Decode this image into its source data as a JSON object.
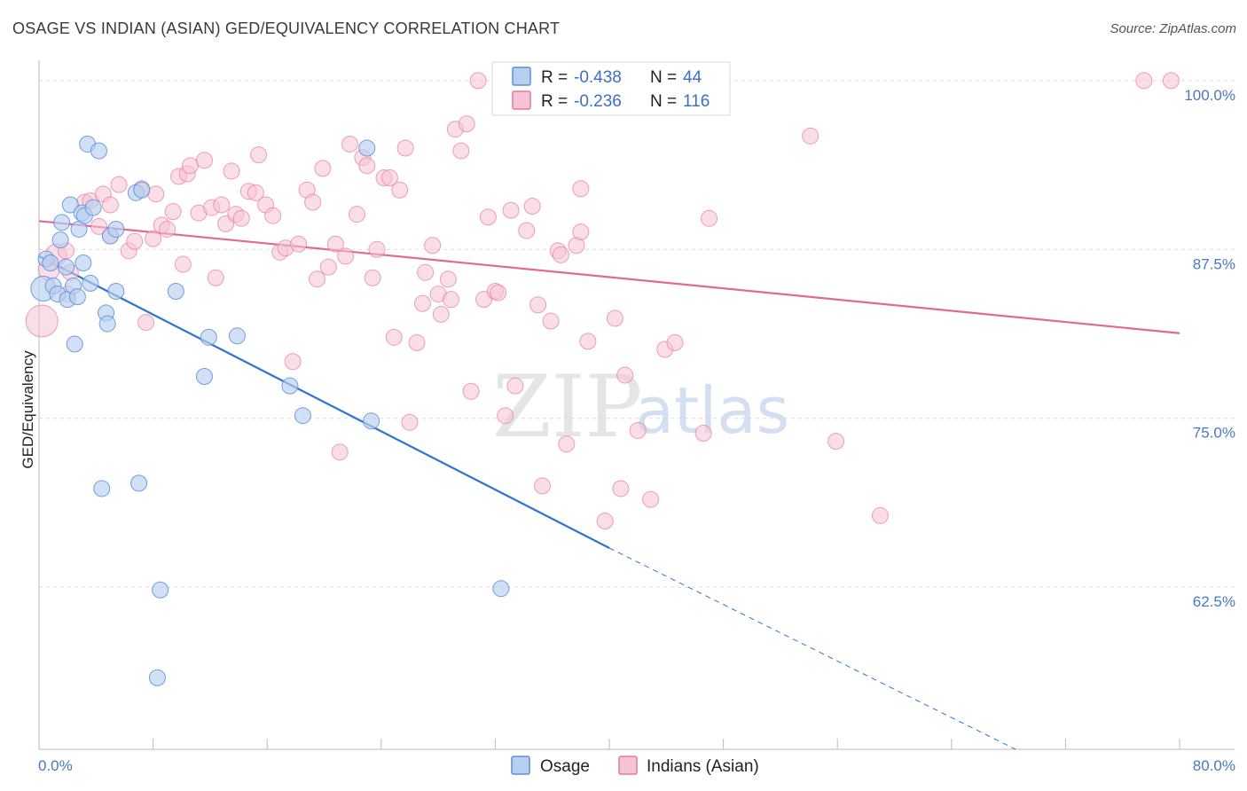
{
  "header": {
    "title": "OSAGE VS INDIAN (ASIAN) GED/EQUIVALENCY CORRELATION CHART",
    "source": "Source: ZipAtlas.com"
  },
  "colors": {
    "osage": "#5b8fd8",
    "osage_fill": "#b8d0f0",
    "indian": "#e8779f",
    "indian_fill": "#f6c3d4",
    "osage_line": "#2f74d0",
    "indian_line": "#e06a96"
  },
  "legend": {
    "r_label": "R =",
    "n_label": "N =",
    "osage_r": "-0.438",
    "osage_n": "44",
    "indian_r": "-0.236",
    "indian_n": "116"
  },
  "bottom_legend": {
    "osage": "Osage",
    "indian": "Indians (Asian)"
  },
  "watermark": {
    "zip": "ZIP",
    "atlas": "atlas"
  },
  "chart_data": {
    "type": "scatter",
    "title": "OSAGE VS INDIAN (ASIAN) GED/EQUIVALENCY CORRELATION CHART",
    "ylabel": "GED/Equivalency",
    "xlabel": "",
    "xlim": [
      0,
      80
    ],
    "ylim": [
      50.5,
      101.5
    ],
    "x_tick_labels": [
      "0.0%",
      "80.0%"
    ],
    "y_ticks": [
      62.5,
      75.0,
      87.5,
      100.0
    ],
    "y_tick_labels": [
      "62.5%",
      "75.0%",
      "87.5%",
      "100.0%"
    ],
    "grid": true,
    "legend_position": "top-center",
    "series": [
      {
        "name": "Osage",
        "trend": {
          "x0": 0,
          "y0": 87.0,
          "x1": 40,
          "y1": 65.4,
          "dash_to_x": 68.5,
          "dash_to_y": 50.5
        },
        "points": [
          [
            0.3,
            84.6,
            14
          ],
          [
            0.5,
            86.8,
            9
          ],
          [
            0.8,
            86.5,
            9
          ],
          [
            1.0,
            84.8,
            9
          ],
          [
            1.3,
            84.2,
            9
          ],
          [
            1.5,
            88.2,
            9
          ],
          [
            1.6,
            89.5,
            9
          ],
          [
            1.9,
            86.2,
            9
          ],
          [
            2.0,
            83.8,
            9
          ],
          [
            2.2,
            90.8,
            9
          ],
          [
            2.4,
            84.8,
            9
          ],
          [
            2.5,
            80.5,
            9
          ],
          [
            2.7,
            84.0,
            9
          ],
          [
            2.8,
            89.0,
            9
          ],
          [
            3.0,
            90.2,
            9
          ],
          [
            3.1,
            86.5,
            9
          ],
          [
            3.2,
            90.0,
            9
          ],
          [
            3.4,
            95.3,
            9
          ],
          [
            3.6,
            85.0,
            9
          ],
          [
            3.8,
            90.6,
            9
          ],
          [
            4.2,
            94.8,
            9
          ],
          [
            4.4,
            69.8,
            9
          ],
          [
            4.7,
            82.8,
            9
          ],
          [
            4.8,
            82.0,
            9
          ],
          [
            5.0,
            88.5,
            9
          ],
          [
            5.4,
            84.4,
            9
          ],
          [
            5.4,
            89.0,
            9
          ],
          [
            6.8,
            91.7,
            9
          ],
          [
            7.0,
            70.2,
            9
          ],
          [
            7.2,
            91.9,
            9
          ],
          [
            8.5,
            62.3,
            9
          ],
          [
            8.3,
            55.8,
            9
          ],
          [
            9.6,
            84.4,
            9
          ],
          [
            11.6,
            78.1,
            9
          ],
          [
            11.9,
            81.0,
            9
          ],
          [
            13.9,
            81.1,
            9
          ],
          [
            17.6,
            77.4,
            9
          ],
          [
            18.5,
            75.2,
            9
          ],
          [
            23.0,
            95.0,
            9
          ],
          [
            23.3,
            74.8,
            9
          ],
          [
            32.4,
            62.4,
            9
          ]
        ]
      },
      {
        "name": "Indians (Asian)",
        "trend": {
          "x0": 0,
          "y0": 89.6,
          "x1": 80,
          "y1": 81.3
        },
        "points": [
          [
            0.2,
            82.2,
            18
          ],
          [
            0.7,
            86.0,
            12
          ],
          [
            1.2,
            87.1,
            12
          ],
          [
            1.9,
            87.4,
            9
          ],
          [
            2.0,
            84.2,
            9
          ],
          [
            2.2,
            85.8,
            9
          ],
          [
            3.2,
            91.0,
            9
          ],
          [
            3.6,
            91.1,
            9
          ],
          [
            4.2,
            89.2,
            9
          ],
          [
            4.5,
            91.6,
            9
          ],
          [
            5.0,
            90.8,
            9
          ],
          [
            5.0,
            88.5,
            9
          ],
          [
            5.6,
            92.3,
            9
          ],
          [
            6.3,
            87.4,
            9
          ],
          [
            6.7,
            88.1,
            9
          ],
          [
            7.2,
            92.0,
            9
          ],
          [
            7.5,
            82.1,
            9
          ],
          [
            8.0,
            88.3,
            9
          ],
          [
            8.2,
            91.6,
            9
          ],
          [
            8.6,
            89.3,
            9
          ],
          [
            9.0,
            89.0,
            9
          ],
          [
            9.4,
            90.3,
            9
          ],
          [
            9.8,
            92.9,
            9
          ],
          [
            10.1,
            86.4,
            9
          ],
          [
            10.4,
            93.1,
            9
          ],
          [
            10.6,
            93.7,
            9
          ],
          [
            11.2,
            90.2,
            9
          ],
          [
            11.6,
            94.1,
            9
          ],
          [
            12.1,
            90.6,
            9
          ],
          [
            12.4,
            85.4,
            9
          ],
          [
            12.8,
            90.8,
            9
          ],
          [
            13.1,
            89.4,
            9
          ],
          [
            13.5,
            93.3,
            9
          ],
          [
            13.8,
            90.1,
            9
          ],
          [
            14.2,
            89.8,
            9
          ],
          [
            14.7,
            91.8,
            9
          ],
          [
            15.2,
            91.7,
            9
          ],
          [
            15.4,
            94.5,
            9
          ],
          [
            15.9,
            90.8,
            9
          ],
          [
            16.4,
            90.0,
            9
          ],
          [
            16.9,
            87.3,
            9
          ],
          [
            17.3,
            87.6,
            9
          ],
          [
            17.8,
            79.2,
            9
          ],
          [
            18.2,
            87.9,
            9
          ],
          [
            18.8,
            91.9,
            9
          ],
          [
            19.2,
            91.0,
            9
          ],
          [
            19.5,
            85.3,
            9
          ],
          [
            19.9,
            93.5,
            9
          ],
          [
            20.3,
            86.2,
            9
          ],
          [
            20.8,
            87.9,
            9
          ],
          [
            21.1,
            72.5,
            9
          ],
          [
            21.5,
            87.0,
            9
          ],
          [
            21.8,
            95.3,
            9
          ],
          [
            22.3,
            90.1,
            9
          ],
          [
            22.7,
            94.3,
            9
          ],
          [
            23.0,
            93.7,
            9
          ],
          [
            23.4,
            85.4,
            9
          ],
          [
            23.7,
            87.5,
            9
          ],
          [
            24.2,
            92.8,
            9
          ],
          [
            24.6,
            92.8,
            9
          ],
          [
            24.9,
            81.0,
            9
          ],
          [
            25.3,
            91.9,
            9
          ],
          [
            25.7,
            95.0,
            9
          ],
          [
            26.0,
            74.7,
            9
          ],
          [
            26.5,
            80.6,
            9
          ],
          [
            26.9,
            83.5,
            9
          ],
          [
            27.1,
            85.8,
            9
          ],
          [
            27.6,
            87.8,
            9
          ],
          [
            28.0,
            84.2,
            9
          ],
          [
            28.2,
            82.7,
            9
          ],
          [
            28.7,
            85.3,
            9
          ],
          [
            28.9,
            83.8,
            9
          ],
          [
            29.2,
            96.4,
            9
          ],
          [
            29.6,
            94.8,
            9
          ],
          [
            30.0,
            96.8,
            9
          ],
          [
            30.3,
            77.0,
            9
          ],
          [
            30.8,
            100.0,
            9
          ],
          [
            31.2,
            83.8,
            9
          ],
          [
            31.5,
            89.9,
            9
          ],
          [
            32.0,
            84.4,
            9
          ],
          [
            32.2,
            84.3,
            9
          ],
          [
            32.7,
            75.2,
            9
          ],
          [
            33.1,
            90.4,
            9
          ],
          [
            33.4,
            77.4,
            9
          ],
          [
            34.2,
            88.9,
            9
          ],
          [
            34.6,
            90.7,
            9
          ],
          [
            35.0,
            83.4,
            9
          ],
          [
            35.3,
            70.0,
            9
          ],
          [
            35.9,
            82.2,
            9
          ],
          [
            36.4,
            87.4,
            9
          ],
          [
            36.6,
            87.1,
            9
          ],
          [
            37.0,
            73.1,
            9
          ],
          [
            37.7,
            87.8,
            9
          ],
          [
            38.0,
            88.8,
            9
          ],
          [
            38.0,
            92.0,
            9
          ],
          [
            38.5,
            80.7,
            9
          ],
          [
            39.7,
            67.4,
            9
          ],
          [
            40.4,
            82.4,
            9
          ],
          [
            40.8,
            69.8,
            9
          ],
          [
            41.1,
            78.2,
            9
          ],
          [
            42.0,
            74.1,
            9
          ],
          [
            42.9,
            69.0,
            9
          ],
          [
            43.5,
            100.0,
            9
          ],
          [
            43.9,
            80.1,
            9
          ],
          [
            44.6,
            80.6,
            9
          ],
          [
            46.6,
            73.9,
            9
          ],
          [
            47.0,
            89.8,
            9
          ],
          [
            54.1,
            95.9,
            9
          ],
          [
            55.9,
            73.3,
            9
          ],
          [
            59.0,
            67.8,
            9
          ],
          [
            77.5,
            100.0,
            9
          ],
          [
            79.4,
            100.0,
            9
          ]
        ]
      }
    ]
  }
}
